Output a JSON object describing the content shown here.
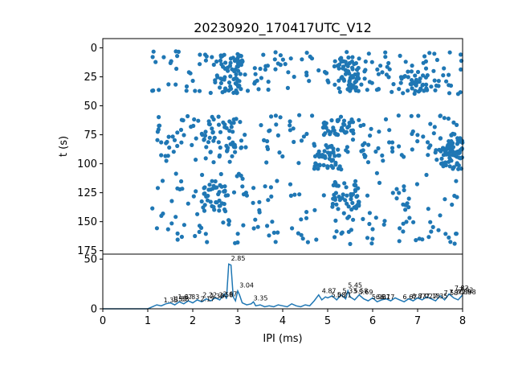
{
  "chart_data": [
    {
      "type": "scatter",
      "title": "20230920_170417UTC_V12",
      "xlabel": "",
      "ylabel": "t (s)",
      "xlim": [
        0,
        8
      ],
      "ylim": [
        178,
        -8
      ],
      "y_inverted": true,
      "yticks": [
        0,
        25,
        50,
        75,
        100,
        125,
        150,
        175
      ],
      "grid": false,
      "color": "#1f77b4",
      "clusters": [
        {
          "x": [
            1.1,
            8.0
          ],
          "y": [
            3,
            40
          ],
          "n": 170
        },
        {
          "x": [
            2.6,
            3.1
          ],
          "y": [
            5,
            40
          ],
          "n": 60
        },
        {
          "x": [
            5.2,
            5.7
          ],
          "y": [
            8,
            40
          ],
          "n": 50
        },
        {
          "x": [
            6.6,
            7.2
          ],
          "y": [
            20,
            38
          ],
          "n": 30
        },
        {
          "x": [
            1.2,
            8.0
          ],
          "y": [
            58,
            100
          ],
          "n": 160
        },
        {
          "x": [
            2.3,
            3.0
          ],
          "y": [
            60,
            95
          ],
          "n": 40
        },
        {
          "x": [
            4.9,
            5.6
          ],
          "y": [
            62,
            75
          ],
          "n": 40
        },
        {
          "x": [
            7.5,
            8.0
          ],
          "y": [
            74,
            105
          ],
          "n": 70
        },
        {
          "x": [
            4.7,
            5.3
          ],
          "y": [
            85,
            105
          ],
          "n": 40
        },
        {
          "x": [
            1.1,
            8.0
          ],
          "y": [
            108,
            170
          ],
          "n": 170
        },
        {
          "x": [
            5.1,
            5.7
          ],
          "y": [
            115,
            140
          ],
          "n": 40
        },
        {
          "x": [
            2.2,
            2.8
          ],
          "y": [
            118,
            142
          ],
          "n": 30
        }
      ]
    },
    {
      "type": "line",
      "title": "",
      "xlabel": "IPI (ms)",
      "ylabel": "",
      "xlim": [
        0,
        8
      ],
      "ylim": [
        0,
        55
      ],
      "xticks": [
        0,
        1,
        2,
        3,
        4,
        5,
        6,
        7,
        8
      ],
      "yticks": [
        0,
        50
      ],
      "grid": false,
      "color": "#1f77b4",
      "series": [
        {
          "x": [
            0,
            0.5,
            1.0,
            1.05,
            1.1,
            1.2,
            1.3,
            1.4,
            1.5,
            1.6,
            1.7,
            1.8,
            1.9,
            2.0,
            2.1,
            2.2,
            2.3,
            2.4,
            2.5,
            2.6,
            2.7,
            2.75,
            2.8,
            2.85,
            2.9,
            2.95,
            3.0,
            3.04,
            3.1,
            3.2,
            3.3,
            3.35,
            3.4,
            3.5,
            3.6,
            3.7,
            3.8,
            3.9,
            4.0,
            4.1,
            4.2,
            4.3,
            4.4,
            4.5,
            4.6,
            4.7,
            4.8,
            4.87,
            4.95,
            5.0,
            5.1,
            5.2,
            5.3,
            5.4,
            5.45,
            5.5,
            5.6,
            5.7,
            5.8,
            5.9,
            6.0,
            6.1,
            6.2,
            6.3,
            6.4,
            6.5,
            6.6,
            6.7,
            6.8,
            6.9,
            7.0,
            7.1,
            7.2,
            7.3,
            7.4,
            7.5,
            7.6,
            7.7,
            7.8,
            7.9,
            8.0
          ],
          "y": [
            0,
            0,
            0,
            1,
            2,
            4,
            3,
            5,
            6,
            4,
            7,
            5,
            8,
            6,
            9,
            7,
            10,
            8,
            11,
            9,
            15,
            10,
            45,
            44,
            12,
            8,
            18,
            14,
            6,
            4,
            5,
            7,
            3,
            4,
            2,
            3,
            2,
            4,
            3,
            2,
            5,
            3,
            2,
            4,
            3,
            8,
            14,
            9,
            12,
            11,
            13,
            9,
            14,
            10,
            18,
            12,
            9,
            14,
            10,
            8,
            11,
            7,
            9,
            10,
            8,
            11,
            9,
            7,
            10,
            8,
            11,
            9,
            12,
            10,
            8,
            13,
            9,
            15,
            11,
            9,
            14
          ]
        }
      ],
      "peak_labels": [
        {
          "x": 1.35,
          "y": 5,
          "label": "1.35"
        },
        {
          "x": 1.55,
          "y": 6,
          "label": "1.55"
        },
        {
          "x": 1.6,
          "y": 6,
          "label": "1.58"
        },
        {
          "x": 1.67,
          "y": 8,
          "label": "1.67"
        },
        {
          "x": 1.83,
          "y": 8,
          "label": "1.83"
        },
        {
          "x": 2.17,
          "y": 6,
          "label": "2.17"
        },
        {
          "x": 2.22,
          "y": 10,
          "label": "2.22"
        },
        {
          "x": 2.38,
          "y": 9,
          "label": "2.38"
        },
        {
          "x": 2.58,
          "y": 10,
          "label": "2.58"
        },
        {
          "x": 2.67,
          "y": 11,
          "label": "2.67"
        },
        {
          "x": 2.85,
          "y": 47,
          "label": "2.85"
        },
        {
          "x": 3.04,
          "y": 20,
          "label": "3.04"
        },
        {
          "x": 3.35,
          "y": 7,
          "label": "3.35"
        },
        {
          "x": 4.87,
          "y": 14,
          "label": "4.87"
        },
        {
          "x": 5.08,
          "y": 10,
          "label": "5.08"
        },
        {
          "x": 5.21,
          "y": 10,
          "label": "5.21"
        },
        {
          "x": 5.33,
          "y": 14,
          "label": "5.33"
        },
        {
          "x": 5.45,
          "y": 20,
          "label": "5.45"
        },
        {
          "x": 5.58,
          "y": 14,
          "label": "5.58"
        },
        {
          "x": 5.69,
          "y": 13,
          "label": "5.69"
        },
        {
          "x": 5.98,
          "y": 8,
          "label": "5.98"
        },
        {
          "x": 6.07,
          "y": 8,
          "label": "6.07"
        },
        {
          "x": 6.17,
          "y": 8,
          "label": "6.17"
        },
        {
          "x": 6.67,
          "y": 8,
          "label": "6.67"
        },
        {
          "x": 6.87,
          "y": 9,
          "label": "6.87"
        },
        {
          "x": 7.02,
          "y": 9,
          "label": "7.02"
        },
        {
          "x": 7.18,
          "y": 9,
          "label": "7.18"
        },
        {
          "x": 7.35,
          "y": 9,
          "label": "7.35"
        },
        {
          "x": 7.58,
          "y": 12,
          "label": "7.58"
        },
        {
          "x": 7.7,
          "y": 13,
          "label": "7.70"
        },
        {
          "x": 7.82,
          "y": 17,
          "label": "7.82"
        },
        {
          "x": 7.88,
          "y": 13,
          "label": "7.88"
        },
        {
          "x": 7.92,
          "y": 15,
          "label": "7.92"
        },
        {
          "x": 7.98,
          "y": 13,
          "label": "7.98"
        }
      ]
    }
  ]
}
